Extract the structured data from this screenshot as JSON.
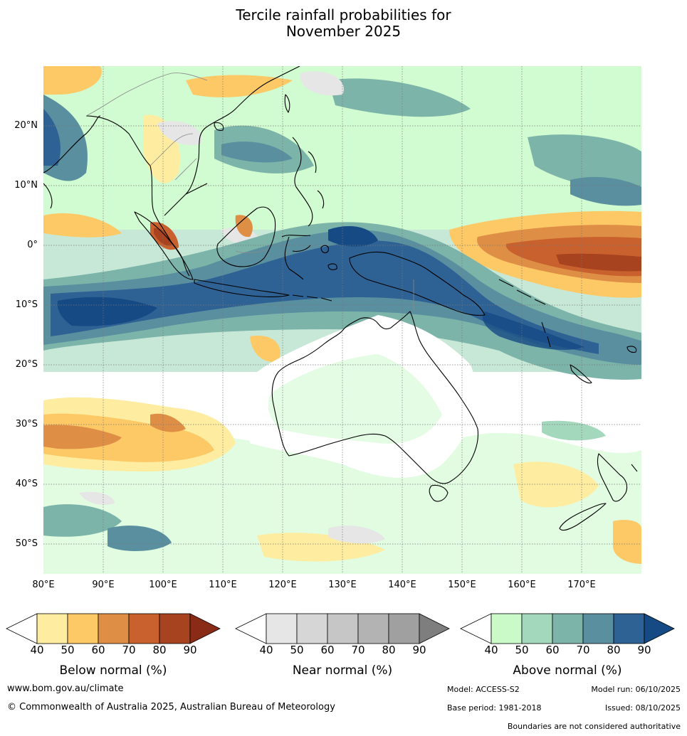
{
  "title_line1": "Tercile rainfall probabilities for",
  "title_line2": "November 2025",
  "lat_labels": [
    "20°N",
    "10°N",
    "0°",
    "10°S",
    "20°S",
    "30°S",
    "40°S",
    "50°S"
  ],
  "lon_labels": [
    "80°E",
    "90°E",
    "100°E",
    "110°E",
    "120°E",
    "130°E",
    "140°E",
    "150°E",
    "160°E",
    "170°E"
  ],
  "colorbars": [
    {
      "label": "Below normal (%)",
      "ticks": [
        "40",
        "50",
        "60",
        "70",
        "80",
        "90"
      ],
      "colors": [
        "#ffffff",
        "#feeda0",
        "#fdc967",
        "#df8f45",
        "#c8612e",
        "#a8431f",
        "#8a2b18"
      ]
    },
    {
      "label": "Near normal (%)",
      "ticks": [
        "40",
        "50",
        "60",
        "70",
        "80",
        "90"
      ],
      "colors": [
        "#ffffff",
        "#e6e6e6",
        "#d6d6d6",
        "#c6c6c6",
        "#b3b3b3",
        "#a0a0a0",
        "#7e7e7e"
      ]
    },
    {
      "label": "Above normal (%)",
      "ticks": [
        "40",
        "50",
        "60",
        "70",
        "80",
        "90"
      ],
      "colors": [
        "#ffffff",
        "#c9fac8",
        "#a4d8bd",
        "#7db4aa",
        "#5a8fa0",
        "#2f6294",
        "#154a84"
      ]
    }
  ],
  "footer": {
    "website": "www.bom.gov.au/climate",
    "copyright": "© Commonwealth of Australia 2025, Australian Bureau of Meteorology",
    "model": "Model: ACCESS-S2",
    "model_run": "Model run: 06/10/2025",
    "base_period": "Base period: 1981-2018",
    "issued": "Issued: 08/10/2025",
    "disclaimer": "Boundaries are not considered authoritative"
  }
}
